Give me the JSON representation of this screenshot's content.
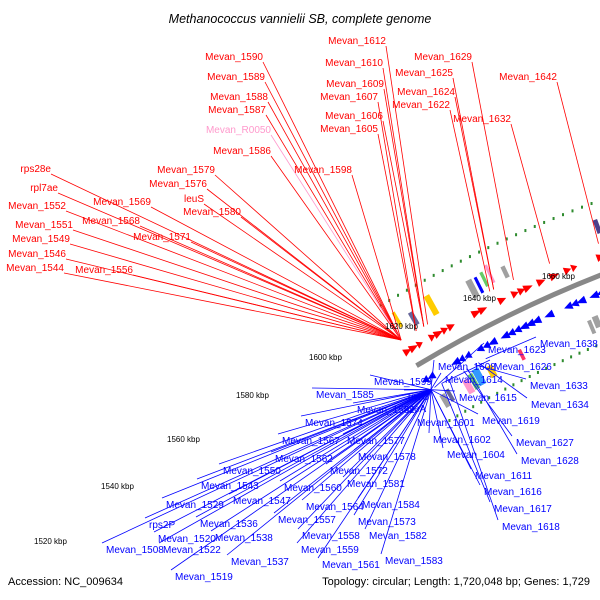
{
  "title": "Methanococcus vannielii SB, complete genome",
  "footer": {
    "accession": "Accession: NC_009634",
    "stats": "Topology: circular; Length: 1,720,048 bp; Genes: 1,729"
  },
  "colors": {
    "forward_label": "#ff0000",
    "reverse_label": "#0000ff",
    "rna_label": "#ff99cc",
    "backbone": "#888888",
    "tick": "#2e8b2e"
  },
  "ticks": [
    "1520 kbp",
    "1540 kbp",
    "1560 kbp",
    "1580 kbp",
    "1600 kbp",
    "1620 kbp",
    "1640 kbp",
    "1660 kbp"
  ],
  "forward_labels": [
    "Mevan_1590",
    "Mevan_1589",
    "Mevan_1588",
    "Mevan_1587",
    "Mevan_R0050",
    "Mevan_1586",
    "Mevan_1579",
    "Mevan_1576",
    "leuS",
    "Mevan_1580",
    "Mevan_1569",
    "Mevan_1568",
    "Mevan_1571",
    "rps28e",
    "rpl7ae",
    "Mevan_1552",
    "Mevan_1551",
    "Mevan_1549",
    "Mevan_1546",
    "Mevan_1544",
    "Mevan_1556",
    "Mevan_1598",
    "Mevan_1612",
    "Mevan_1610",
    "Mevan_1609",
    "Mevan_1607",
    "Mevan_1606",
    "Mevan_1605",
    "Mevan_1629",
    "Mevan_1625",
    "Mevan_1624",
    "Mevan_1622",
    "Mevan_1642",
    "Mevan_1632"
  ],
  "reverse_labels": [
    "Mevan_1623",
    "Mevan_1638",
    "Mevan_1608",
    "Mevan_1626",
    "Mevan_1599",
    "Mevan_1614",
    "Mevan_1633",
    "Mevan_1585",
    "uvrC",
    "Mevan_1615",
    "Mevan_1634",
    "Mevan_1592",
    "xseA",
    "Mevan_1574",
    "Mevan_1601",
    "Mevan_1619",
    "Mevan_1567",
    "Mevan_1577",
    "Mevan_1602",
    "Mevan_1627",
    "Mevan_1562",
    "Mevan_1578",
    "Mevan_1604",
    "Mevan_1628",
    "Mevan_1550",
    "Mevan_1572",
    "Mevan_1611",
    "Mevan_1543",
    "Mevan_1581",
    "Mevan_1560",
    "Mevan_1616",
    "Mevan_1547",
    "Mevan_1529",
    "Mevan_1564",
    "Mevan_1584",
    "Mevan_1617",
    "Mevan_1557",
    "Mevan_1573",
    "rps2P",
    "Mevan_1536",
    "Mevan_1618",
    "Mevan_1538",
    "Mevan_1558",
    "Mevan_1582",
    "Mevan_1520",
    "Mevan_1559",
    "Mevan_1508",
    "Mevan_1522",
    "Mevan_1537",
    "Mevan_1561",
    "Mevan_1583",
    "Mevan_1519"
  ]
}
